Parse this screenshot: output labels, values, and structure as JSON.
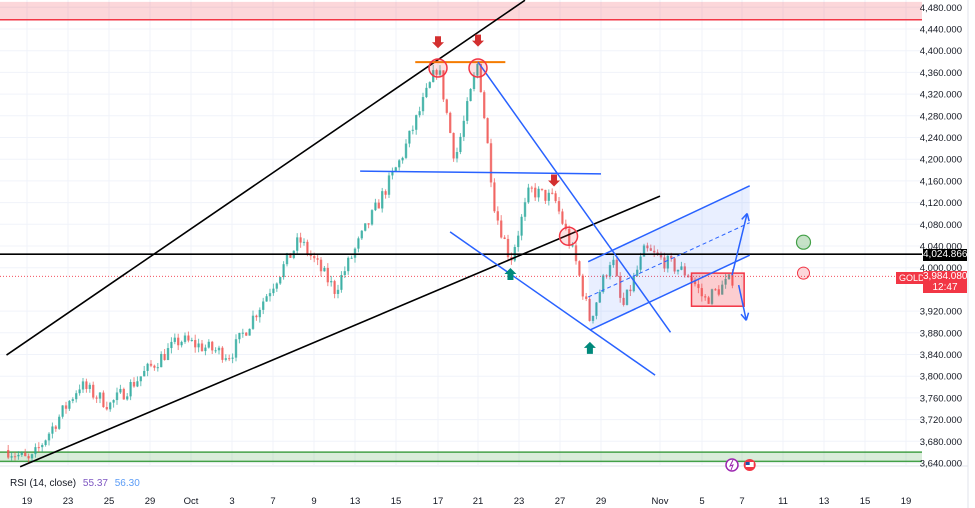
{
  "chart_data": {
    "type": "candlestick",
    "symbol": "GOLD",
    "last_price": "3,984.080",
    "countdown": "12:47",
    "level_label": "4,024.866",
    "ylim": [
      3620,
      4492
    ],
    "y_ticks": [
      "4,480.000",
      "4,440.000",
      "4,400.000",
      "4,360.000",
      "4,320.000",
      "4,280.000",
      "4,240.000",
      "4,200.000",
      "4,160.000",
      "4,120.000",
      "4,080.000",
      "4,040.000",
      "4,000.000",
      "3,920.000",
      "3,880.000",
      "3,840.000",
      "3,800.000",
      "3,760.000",
      "3,720.000",
      "3,680.000",
      "3,640.000"
    ],
    "y_tick_values": [
      4480,
      4440,
      4400,
      4360,
      4320,
      4280,
      4240,
      4200,
      4160,
      4120,
      4080,
      4040,
      4000,
      3920,
      3880,
      3840,
      3800,
      3760,
      3720,
      3680,
      3640
    ],
    "x_ticks": [
      "19",
      "23",
      "25",
      "29",
      "Oct",
      "3",
      "7",
      "9",
      "13",
      "15",
      "17",
      "21",
      "23",
      "27",
      "29",
      "Nov",
      "5",
      "7",
      "11",
      "13",
      "15",
      "19"
    ],
    "x_tick_dates": [
      "2025-09-19",
      "2025-09-23",
      "2025-09-25",
      "2025-09-29",
      "2025-10-01",
      "2025-10-03",
      "2025-10-07",
      "2025-10-09",
      "2025-10-13",
      "2025-10-15",
      "2025-10-17",
      "2025-10-21",
      "2025-10-23",
      "2025-10-27",
      "2025-10-29",
      "2025-11-03",
      "2025-11-05",
      "2025-11-07",
      "2025-11-11",
      "2025-11-13",
      "2025-11-15",
      "2025-11-19"
    ],
    "price_path": [
      [
        "2025-09-17T04",
        3664
      ],
      [
        "2025-09-19T07",
        3642
      ],
      [
        "2025-09-23T14",
        3784
      ],
      [
        "2025-09-25T02",
        3747
      ],
      [
        "2025-09-30T11",
        3867
      ],
      [
        "2025-10-02T22",
        3839
      ],
      [
        "2025-10-08T07",
        4051
      ],
      [
        "2025-10-11T01",
        3959
      ],
      [
        "2025-10-15T05",
        4199
      ],
      [
        "2025-10-17T00",
        4374
      ],
      [
        "2025-10-18T17",
        4199
      ],
      [
        "2025-10-21T00",
        4379
      ],
      [
        "2025-10-21T20",
        4106
      ],
      [
        "2025-10-22T14",
        4014
      ],
      [
        "2025-10-24T01",
        4143
      ],
      [
        "2025-10-26T12",
        4125
      ],
      [
        "2025-10-27T18",
        4014
      ],
      [
        "2025-10-28T11",
        3904
      ],
      [
        "2025-10-29T22",
        4023
      ],
      [
        "2025-10-30T19",
        3922
      ],
      [
        "2025-11-01T17",
        4032
      ],
      [
        "2025-11-04T10",
        3986
      ],
      [
        "2025-11-05T03",
        3940
      ],
      [
        "2025-11-06T16",
        3984
      ]
    ],
    "colors": {
      "up": "#26a69a",
      "down": "#ef5350",
      "trend": "#000000",
      "blue": "#2962ff",
      "orange": "#f57c00",
      "zone_red": "#f23645",
      "zone_green": "#43a047",
      "price": "#f23645"
    },
    "drawings": {
      "resistance_zone": [
        4457,
        4490
      ],
      "support_zone": [
        3643,
        3660
      ],
      "horizontal_level": 4024.866,
      "upper_trendline": [
        [
          "2025-09-17T00",
          3839
        ],
        [
          "2025-10-23T14",
          4493
        ]
      ],
      "lower_trendline": [
        [
          "2025-09-18T08",
          3633
        ],
        [
          "2025-11-03T00",
          4132
        ]
      ],
      "top_line": [
        [
          "2025-10-15T22",
          4379
        ],
        [
          "2025-10-22T08",
          4379
        ]
      ],
      "neckline": [
        [
          "2025-10-13T06",
          4178
        ],
        [
          "2025-10-29T00",
          4173
        ]
      ],
      "descending_line_1": [
        [
          "2025-10-21T00",
          4379
        ],
        [
          "2025-11-03T12",
          3881
        ]
      ],
      "descending_line_2": [
        [
          "2025-10-18T05",
          4066
        ],
        [
          "2025-11-02T14",
          3802
        ]
      ],
      "channel_upper": [
        [
          "2025-10-28T09",
          4011
        ],
        [
          "2025-11-07T18",
          4151
        ]
      ],
      "channel_lower": [
        [
          "2025-10-28T11",
          3885
        ],
        [
          "2025-11-07T18",
          4023
        ]
      ],
      "channel_mid": [
        [
          "2025-10-28T09",
          3946
        ],
        [
          "2025-11-07T18",
          4083
        ]
      ],
      "box": [
        [
          "2025-11-04T12",
          3990
        ],
        [
          "2025-11-07T05",
          3929
        ]
      ],
      "arrow_up": [
        [
          "2025-11-06T12",
          3986
        ],
        [
          "2025-11-07T12",
          4100
        ]
      ],
      "arrow_down": [
        [
          "2025-11-06T20",
          3968
        ],
        [
          "2025-11-07T10",
          3903
        ]
      ],
      "red_circles": [
        [
          "2025-10-17T00",
          4368
        ],
        [
          "2025-10-21T00",
          4368
        ],
        [
          "2025-10-27T10",
          4058
        ]
      ],
      "target_up_circle": [
        "2025-11-12T00",
        4047
      ],
      "target_down_circle": [
        "2025-11-12T00",
        3990
      ],
      "down_markers": [
        [
          "2025-10-17T00",
          4412
        ],
        [
          "2025-10-21T00",
          4415
        ],
        [
          "2025-10-26T10",
          4157
        ]
      ],
      "up_markers": [
        [
          "2025-10-22T14",
          3992
        ],
        [
          "2025-10-28T11",
          3856
        ]
      ]
    },
    "events": [
      {
        "icon": "lightning-icon",
        "date": "2025-11-06T12"
      },
      {
        "icon": "us-flag-icon",
        "date": "2025-11-07T18"
      }
    ]
  },
  "rsi": {
    "label": "RSI (14, close)",
    "value1": "55.37",
    "value2": "56.30",
    "color1": "#7e57c2",
    "color2": "#5b9cf6"
  }
}
